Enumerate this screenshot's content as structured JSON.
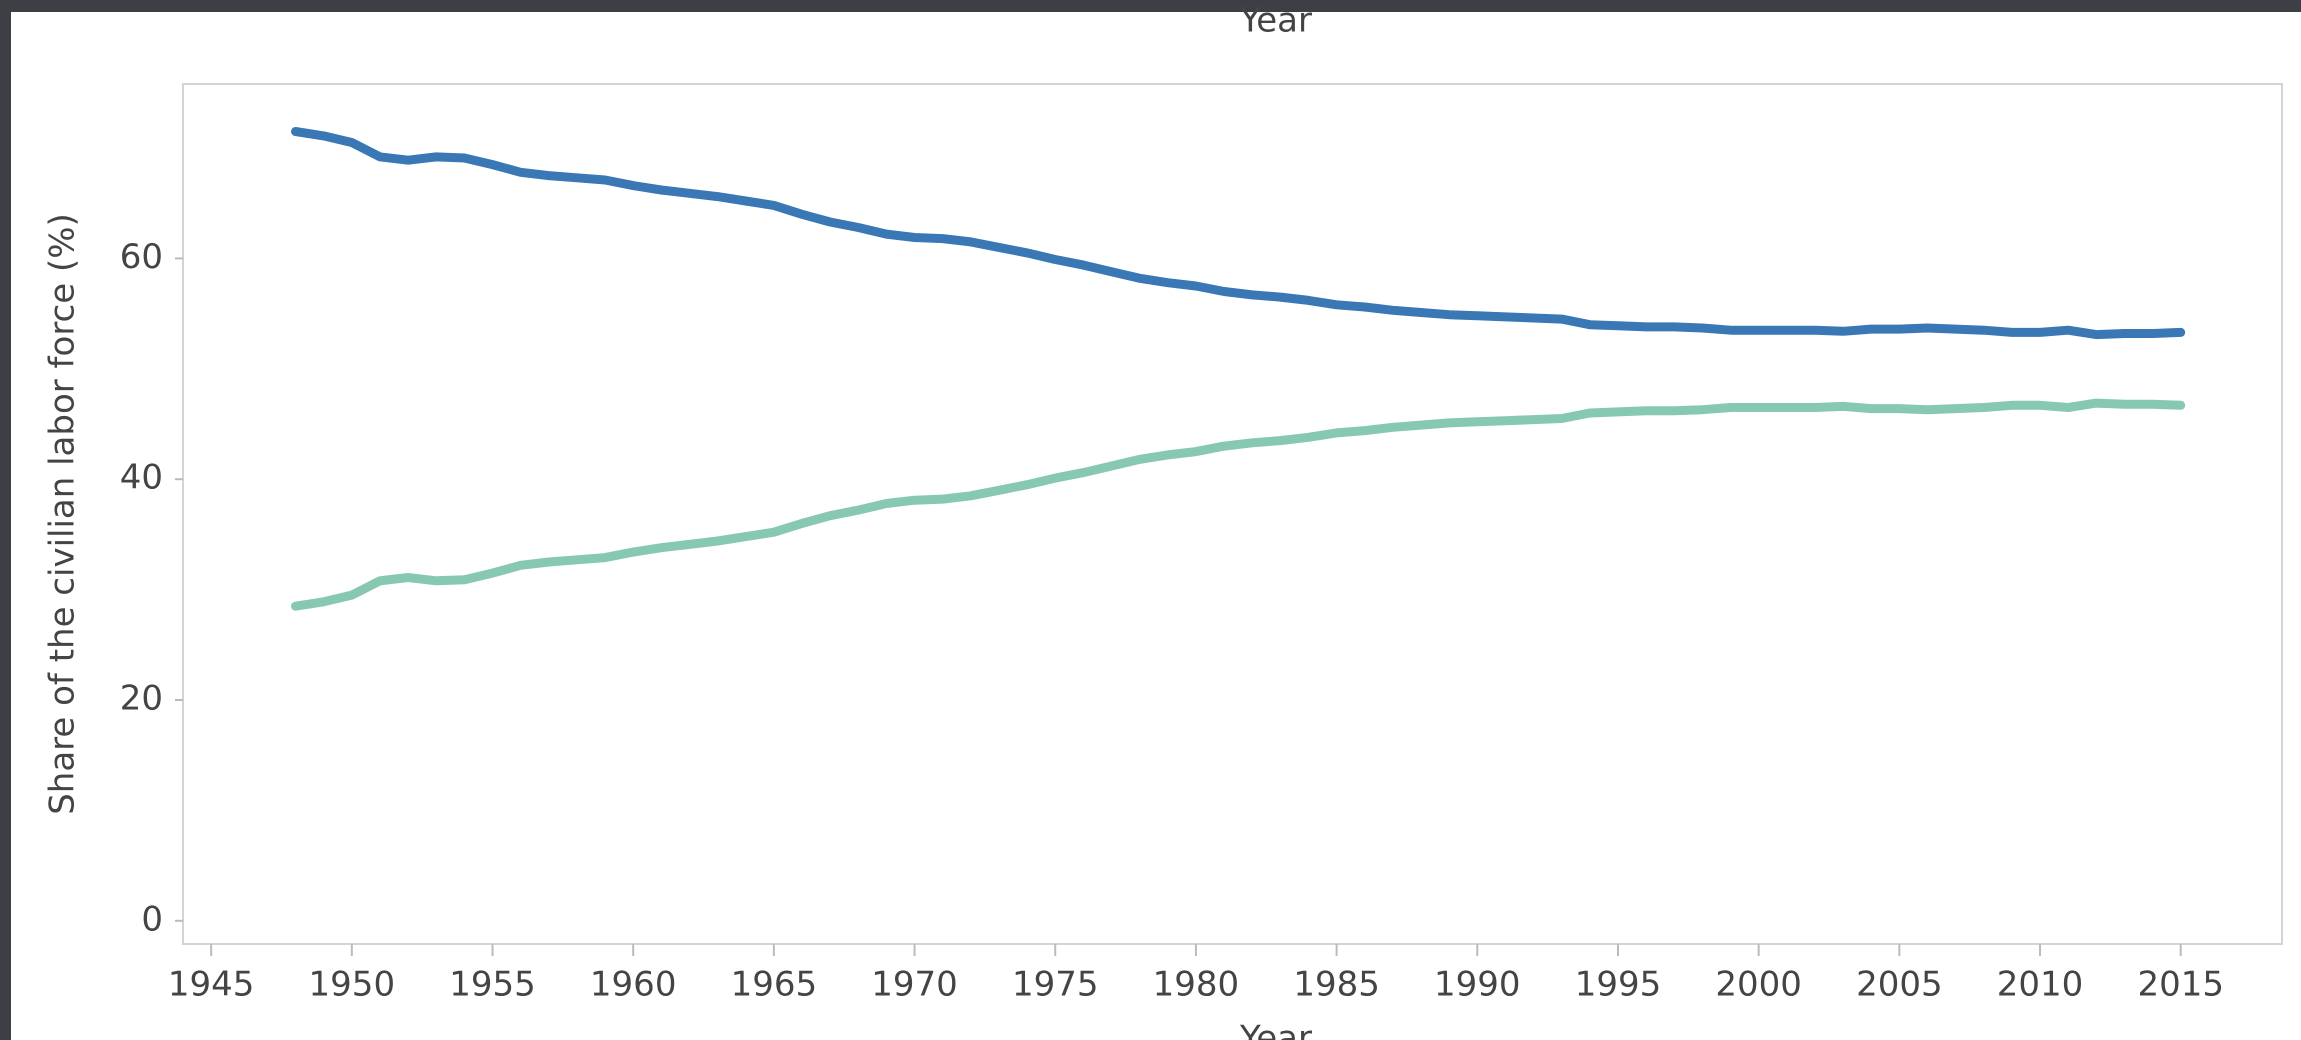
{
  "chart_data": {
    "type": "line",
    "title": "Year",
    "x_label": "Year",
    "y_label": "Share of the civilian labor force (%)",
    "x": [
      1948,
      1949,
      1950,
      1951,
      1952,
      1953,
      1954,
      1955,
      1956,
      1957,
      1958,
      1959,
      1960,
      1961,
      1962,
      1963,
      1964,
      1965,
      1966,
      1967,
      1968,
      1969,
      1970,
      1971,
      1972,
      1973,
      1974,
      1975,
      1976,
      1977,
      1978,
      1979,
      1980,
      1981,
      1982,
      1983,
      1984,
      1985,
      1986,
      1987,
      1988,
      1989,
      1990,
      1991,
      1992,
      1993,
      1994,
      1995,
      1996,
      1997,
      1998,
      1999,
      2000,
      2001,
      2002,
      2003,
      2004,
      2005,
      2006,
      2007,
      2008,
      2009,
      2010,
      2011,
      2012,
      2013,
      2014,
      2015
    ],
    "series": [
      {
        "color": "#3a77b5",
        "values": [
          71.5,
          71.1,
          70.5,
          69.2,
          68.9,
          69.2,
          69.1,
          68.5,
          67.8,
          67.5,
          67.3,
          67.1,
          66.6,
          66.2,
          65.9,
          65.6,
          65.2,
          64.8,
          64.0,
          63.3,
          62.8,
          62.2,
          61.9,
          61.8,
          61.5,
          61.0,
          60.5,
          59.9,
          59.4,
          58.8,
          58.2,
          57.8,
          57.5,
          57.0,
          56.7,
          56.5,
          56.2,
          55.8,
          55.6,
          55.3,
          55.1,
          54.9,
          54.8,
          54.7,
          54.6,
          54.5,
          54.0,
          53.9,
          53.8,
          53.8,
          53.7,
          53.5,
          53.5,
          53.5,
          53.5,
          53.4,
          53.6,
          53.6,
          53.7,
          53.6,
          53.5,
          53.3,
          53.3,
          53.5,
          53.1,
          53.2,
          53.2,
          53.3
        ]
      },
      {
        "color": "#86c8b0",
        "values": [
          28.5,
          28.9,
          29.5,
          30.8,
          31.1,
          30.8,
          30.9,
          31.5,
          32.2,
          32.5,
          32.7,
          32.9,
          33.4,
          33.8,
          34.1,
          34.4,
          34.8,
          35.2,
          36.0,
          36.7,
          37.2,
          37.8,
          38.1,
          38.2,
          38.5,
          39.0,
          39.5,
          40.1,
          40.6,
          41.2,
          41.8,
          42.2,
          42.5,
          43.0,
          43.3,
          43.5,
          43.8,
          44.2,
          44.4,
          44.7,
          44.9,
          45.1,
          45.2,
          45.3,
          45.4,
          45.5,
          46.0,
          46.1,
          46.2,
          46.2,
          46.3,
          46.5,
          46.5,
          46.5,
          46.5,
          46.6,
          46.4,
          46.4,
          46.3,
          46.4,
          46.5,
          46.7,
          46.7,
          46.5,
          46.9,
          46.8,
          46.8,
          46.7
        ]
      }
    ],
    "xlim": [
      1944,
      2018.6
    ],
    "xticks": [
      1945,
      1950,
      1955,
      1960,
      1965,
      1970,
      1975,
      1980,
      1985,
      1990,
      1995,
      2000,
      2005,
      2010,
      2015
    ],
    "ylim": [
      -2.1,
      75.8
    ],
    "yticks": [
      0,
      20,
      40,
      60
    ],
    "grid": false
  }
}
